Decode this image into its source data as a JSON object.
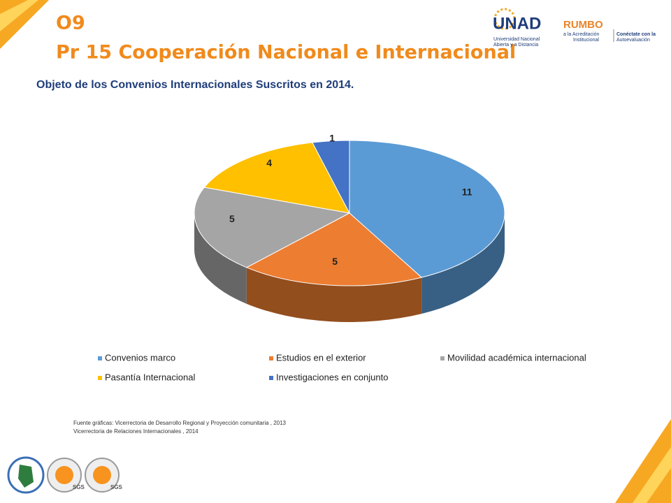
{
  "header": {
    "code": "O9",
    "title": "Pr 15 Cooperación Nacional e Internacional"
  },
  "logos": {
    "unad": "UNAD",
    "unad_sub1": "Universidad Nacional",
    "unad_sub2": "Abierta y a Distancia",
    "rumbo": "RUMBO",
    "rumbo_sub1": "a la Acreditación",
    "rumbo_sub2": "Institucional",
    "conecta1": "Conéctate con la",
    "conecta2": "Autoevaluación",
    "cert": [
      "SGS",
      "SGS"
    ]
  },
  "chart_data": {
    "type": "pie",
    "title": "Objeto de los Convenios Internacionales Suscritos en 2014.",
    "categories": [
      "Convenios marco",
      "Estudios en el exterior",
      "Movilidad académica internacional",
      "Pasantía Internacional",
      "Investigaciones en conjunto"
    ],
    "values": [
      11,
      5,
      5,
      4,
      1
    ],
    "colors": [
      "#5b9bd5",
      "#ed7d31",
      "#a5a5a5",
      "#ffc000",
      "#4472c4"
    ],
    "legend": "bottom"
  },
  "source": [
    "Fuente gráficas: Vicerrectoria de Desarrollo Regional y Proyección comunitaria , 2013",
    "Vicerrectoria de Relaciones Internacionales ,  2014"
  ]
}
